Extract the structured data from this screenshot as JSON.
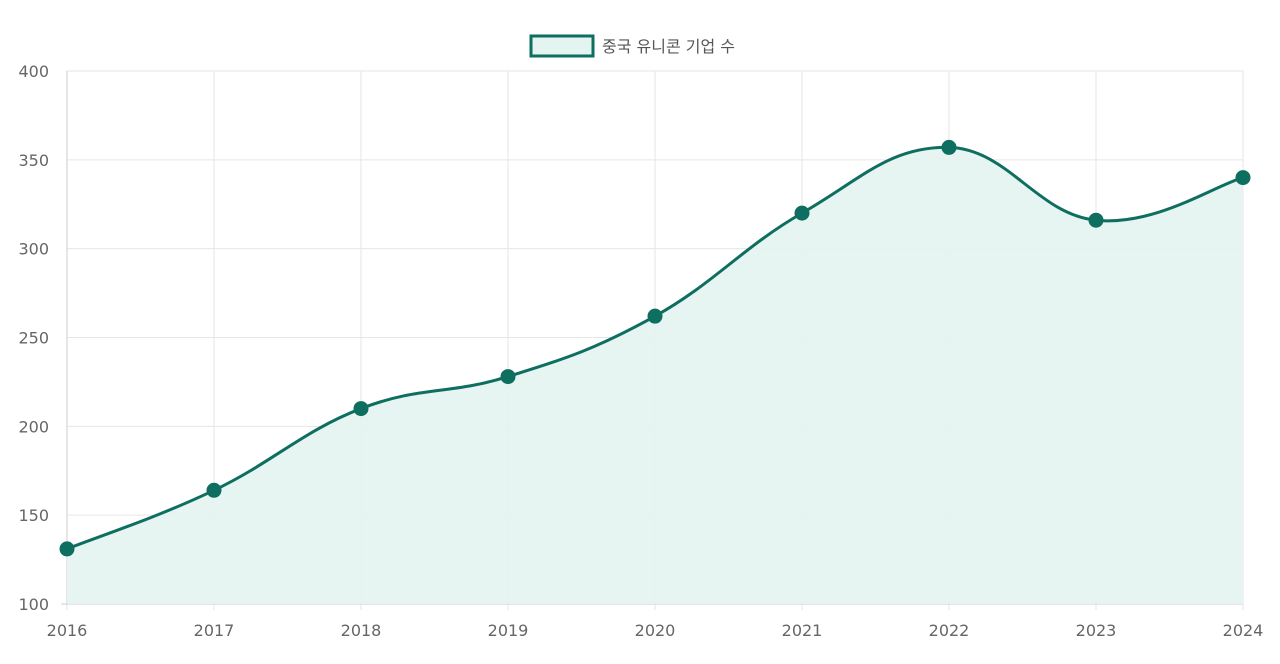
{
  "chart_data": {
    "type": "area",
    "categories": [
      "2016",
      "2017",
      "2018",
      "2019",
      "2020",
      "2021",
      "2022",
      "2023",
      "2024"
    ],
    "series": [
      {
        "name": "중국 유니콘 기업 수",
        "values": [
          131,
          164,
          210,
          228,
          262,
          320,
          357,
          316,
          340
        ]
      }
    ],
    "ylim": [
      100,
      400
    ],
    "y_ticks": [
      "100",
      "150",
      "200",
      "250",
      "300",
      "350",
      "400"
    ],
    "grid": true,
    "legend_position": "top",
    "colors": {
      "line": "#0e6e5f",
      "fill": "#e3f4f1",
      "grid": "#e6e6e6",
      "axis": "#cccccc"
    }
  }
}
